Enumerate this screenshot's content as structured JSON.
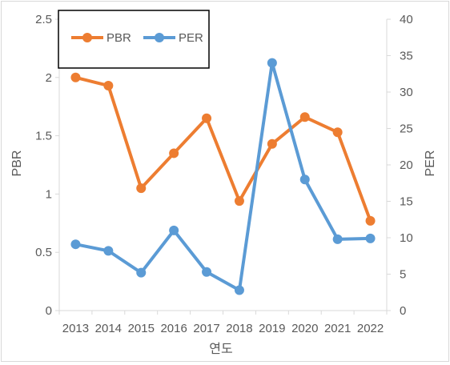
{
  "chart_data": {
    "type": "line",
    "title": "",
    "xlabel": "연도",
    "ylabel_left": "PBR",
    "ylabel_right": "PER",
    "categories": [
      "2013",
      "2014",
      "2015",
      "2016",
      "2017",
      "2018",
      "2019",
      "2020",
      "2021",
      "2022"
    ],
    "y_left": {
      "min": 0,
      "max": 2.5,
      "ticks": [
        "0",
        "0.5",
        "1",
        "1.5",
        "2",
        "2.5"
      ]
    },
    "y_right": {
      "min": 0,
      "max": 40,
      "ticks": [
        "0",
        "5",
        "10",
        "15",
        "20",
        "25",
        "30",
        "35",
        "40"
      ]
    },
    "grid": false,
    "legend_position": "top-left",
    "series": [
      {
        "name": "PBR",
        "axis": "left",
        "color": "#ED7D31",
        "values": [
          2.0,
          1.93,
          1.05,
          1.35,
          1.65,
          0.94,
          1.43,
          1.66,
          1.53,
          0.77
        ]
      },
      {
        "name": "PER",
        "axis": "right",
        "color": "#5B9BD5",
        "values": [
          9.1,
          8.2,
          5.2,
          11.0,
          5.3,
          2.8,
          34.0,
          18.0,
          9.8,
          9.9
        ]
      }
    ]
  }
}
